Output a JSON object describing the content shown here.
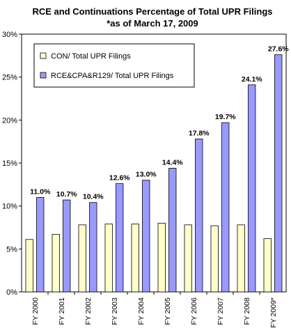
{
  "chart_data": {
    "type": "bar",
    "title": "RCE and Continuations Percentage of Total UPR Filings",
    "subtitle": "*as of March 17, 2009",
    "categories": [
      "FY 2000",
      "FY 2001",
      "FY 2002",
      "FY 2003",
      "FY 2004",
      "FY 2005",
      "FY 2006",
      "FY 2007",
      "FY 2008",
      "FY 2009*"
    ],
    "ylim": [
      0,
      30
    ],
    "yticks": [
      0,
      5,
      10,
      15,
      20,
      25,
      30
    ],
    "ytick_labels": [
      "0%",
      "5%",
      "10%",
      "15%",
      "20%",
      "25%",
      "30%"
    ],
    "xlabel": "",
    "ylabel": "",
    "grid": false,
    "legend_position": "top-left",
    "series": [
      {
        "name": "CON/ Total UPR Filings",
        "color": "#ffffcc",
        "values": [
          6.1,
          6.7,
          7.8,
          7.9,
          7.9,
          8.0,
          7.8,
          7.7,
          7.8,
          6.2
        ],
        "data_labels": []
      },
      {
        "name": "RCE&CPA&R129/ Total UPR Filings",
        "color": "#9999ff",
        "values": [
          11.0,
          10.7,
          10.4,
          12.6,
          13.0,
          14.4,
          17.8,
          19.7,
          24.1,
          27.6
        ],
        "data_labels": [
          "11.0%",
          "10.7%",
          "10.4%",
          "12.6%",
          "13.0%",
          "14.4%",
          "17.8%",
          "19.7%",
          "24.1%",
          "27.6%"
        ]
      }
    ]
  }
}
